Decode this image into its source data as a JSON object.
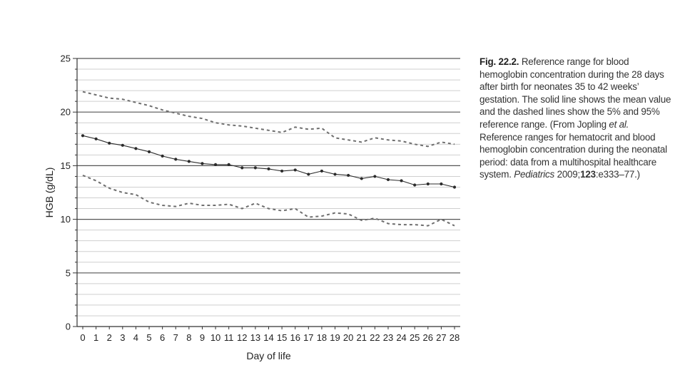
{
  "chart_data": {
    "type": "line",
    "title": "",
    "xlabel": "Day of life",
    "ylabel": "HGB (g/dL)",
    "xlim": [
      0,
      28
    ],
    "ylim": [
      0,
      25
    ],
    "y_major_ticks": [
      0,
      5,
      10,
      15,
      20,
      25
    ],
    "y_minor_step": 1,
    "grid": "horizontal (major dark, minor light)",
    "x": [
      0,
      1,
      2,
      3,
      4,
      5,
      6,
      7,
      8,
      9,
      10,
      11,
      12,
      13,
      14,
      15,
      16,
      17,
      18,
      19,
      20,
      21,
      22,
      23,
      24,
      25,
      26,
      27,
      28
    ],
    "series": [
      {
        "role": "95th percentile",
        "style": "dashed",
        "values": [
          21.9,
          21.6,
          21.3,
          21.2,
          20.9,
          20.6,
          20.2,
          19.9,
          19.6,
          19.4,
          19.0,
          18.8,
          18.7,
          18.5,
          18.3,
          18.1,
          18.6,
          18.4,
          18.5,
          17.6,
          17.4,
          17.2,
          17.6,
          17.4,
          17.3,
          17.0,
          16.8,
          17.2,
          17.0
        ]
      },
      {
        "role": "mean",
        "style": "solid",
        "values": [
          17.8,
          17.5,
          17.1,
          16.9,
          16.6,
          16.3,
          15.9,
          15.6,
          15.4,
          15.2,
          15.1,
          15.1,
          14.8,
          14.8,
          14.7,
          14.5,
          14.6,
          14.2,
          14.5,
          14.2,
          14.1,
          13.8,
          14.0,
          13.7,
          13.6,
          13.2,
          13.3,
          13.3,
          13.0
        ]
      },
      {
        "role": "5th percentile",
        "style": "dashed",
        "values": [
          14.1,
          13.6,
          12.9,
          12.5,
          12.3,
          11.6,
          11.3,
          11.2,
          11.5,
          11.3,
          11.3,
          11.4,
          11.0,
          11.5,
          11.0,
          10.8,
          11.0,
          10.2,
          10.3,
          10.6,
          10.5,
          9.9,
          10.1,
          9.6,
          9.5,
          9.5,
          9.4,
          10.0,
          9.4
        ]
      }
    ],
    "colors": {
      "mean": "#2b2b2b",
      "dashed": "#6e6e6e",
      "grid_major": "#555555",
      "grid_minor": "#cfcfcf"
    }
  },
  "caption": {
    "fig_label": "Fig. 22.2.",
    "segments": [
      {
        "text": " Reference range for blood hemoglobin concentration during the 28 days after birth for neonates 35 to 42 weeks’ gestation. The solid line shows the mean value and the dashed lines show the 5% and 95% reference range. (From Jopling ",
        "style": "normal"
      },
      {
        "text": "et al.",
        "style": "italic"
      },
      {
        "text": " Reference ranges for hematocrit and blood hemoglobin concentration during the neonatal period: data from a multihospital healthcare system. ",
        "style": "normal"
      },
      {
        "text": "Pediatrics",
        "style": "italic"
      },
      {
        "text": " 2009;",
        "style": "normal"
      },
      {
        "text": "123",
        "style": "bold"
      },
      {
        "text": ":e333–77.)",
        "style": "normal"
      }
    ]
  }
}
